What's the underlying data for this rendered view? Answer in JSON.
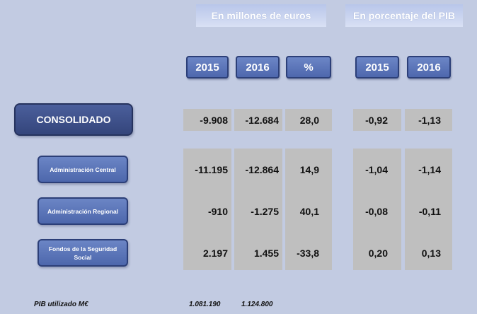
{
  "headers": {
    "millones": "En millones de euros",
    "porcentaje": "En porcentaje del PIB"
  },
  "columns": {
    "m2015": "2015",
    "m2016": "2016",
    "pct": "%",
    "p2015": "2015",
    "p2016": "2016"
  },
  "rows": [
    {
      "label": "CONSOLIDADO",
      "m2015": "-9.908",
      "m2016": "-12.684",
      "pct": "28,0",
      "p2015": "-0,92",
      "p2016": "-1,13"
    },
    {
      "label": "Administración Central",
      "m2015": "-11.195",
      "m2016": "-12.864",
      "pct": "14,9",
      "p2015": "-1,04",
      "p2016": "-1,14"
    },
    {
      "label": "Administración Regional",
      "m2015": "-910",
      "m2016": "-1.275",
      "pct": "40,1",
      "p2015": "-0,08",
      "p2016": "-0,11"
    },
    {
      "label": "Fondos de la Seguridad Social",
      "m2015": "2.197",
      "m2016": "1.455",
      "pct": "-33,8",
      "p2015": "0,20",
      "p2016": "0,13"
    }
  ],
  "footer": {
    "label": "PIB utilizado M€",
    "v2015": "1.081.190",
    "v2016": "1.124.800"
  }
}
